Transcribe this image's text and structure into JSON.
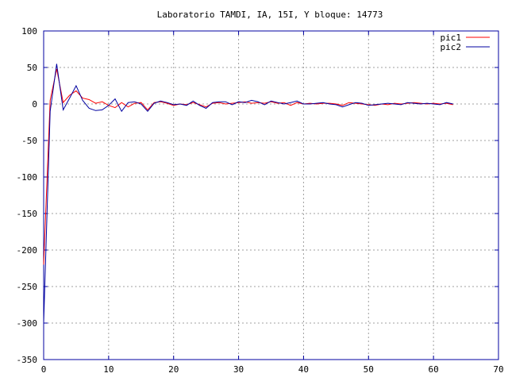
{
  "chart_data": {
    "type": "line",
    "title": "Laboratorio TAMDI, IA, 15I, Y bloque: 14773",
    "xlabel": "",
    "ylabel": "",
    "xlim": [
      0,
      70
    ],
    "ylim": [
      -350,
      100
    ],
    "xticks": [
      0,
      10,
      20,
      30,
      40,
      50,
      60,
      70
    ],
    "yticks": [
      -350,
      -300,
      -250,
      -200,
      -150,
      -100,
      -50,
      0,
      50,
      100
    ],
    "grid": true,
    "legend_position": "top-right",
    "series": [
      {
        "name": "pic1",
        "color": "#ff0000",
        "x": [
          0,
          1,
          2,
          3,
          4,
          5,
          6,
          7,
          8,
          9,
          10,
          11,
          12,
          13,
          14,
          15,
          16,
          17,
          18,
          19,
          20,
          21,
          22,
          23,
          24,
          25,
          26,
          27,
          28,
          29,
          30,
          31,
          32,
          33,
          34,
          35,
          36,
          37,
          38,
          39,
          40,
          41,
          42,
          43,
          44,
          45,
          46,
          47,
          48,
          49,
          50,
          51,
          52,
          53,
          54,
          55,
          56,
          57,
          58,
          59,
          60,
          61,
          62,
          63
        ],
        "y": [
          -220,
          5,
          48,
          2,
          12,
          18,
          8,
          6,
          1,
          3,
          -2,
          -5,
          2,
          -4,
          1,
          2,
          -8,
          2,
          3,
          1,
          -2,
          0,
          -1,
          2,
          -1,
          -4,
          1,
          2,
          0,
          1,
          2,
          3,
          1,
          2,
          1,
          3,
          1,
          2,
          -2,
          2,
          0,
          1,
          0,
          1,
          1,
          0,
          -2,
          2,
          1,
          0,
          -1,
          -2,
          0,
          -1,
          1,
          0,
          1,
          2,
          1,
          0,
          1,
          0,
          1,
          -1
        ]
      },
      {
        "name": "pic2",
        "color": "#0000a0",
        "x": [
          0,
          1,
          2,
          3,
          4,
          5,
          6,
          7,
          8,
          9,
          10,
          11,
          12,
          13,
          14,
          15,
          16,
          17,
          18,
          19,
          20,
          21,
          22,
          23,
          24,
          25,
          26,
          27,
          28,
          29,
          30,
          31,
          32,
          33,
          34,
          35,
          36,
          37,
          38,
          39,
          40,
          41,
          42,
          43,
          44,
          45,
          46,
          47,
          48,
          49,
          50,
          51,
          52,
          53,
          54,
          55,
          56,
          57,
          58,
          59,
          60,
          61,
          62,
          63
        ],
        "y": [
          -300,
          -10,
          55,
          -8,
          8,
          25,
          5,
          -6,
          -9,
          -8,
          -2,
          7,
          -10,
          2,
          3,
          0,
          -10,
          1,
          4,
          2,
          -1,
          0,
          -2,
          4,
          -2,
          -6,
          2,
          3,
          3,
          -1,
          3,
          2,
          5,
          3,
          -1,
          4,
          2,
          0,
          2,
          4,
          0,
          0,
          1,
          2,
          0,
          -1,
          -4,
          -1,
          2,
          1,
          -2,
          -1,
          0,
          1,
          0,
          -1,
          2,
          1,
          0,
          1,
          0,
          -1,
          2,
          0
        ]
      }
    ]
  }
}
